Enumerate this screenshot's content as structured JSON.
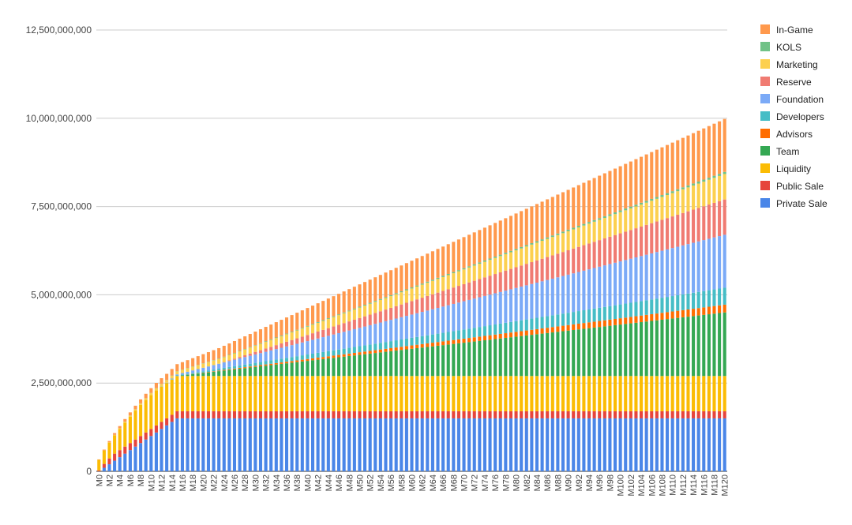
{
  "chart_data": {
    "type": "bar",
    "stacked": true,
    "title": "",
    "xlabel": "",
    "ylabel": "",
    "ylim": [
      0,
      12500000000
    ],
    "y_ticks": [
      0,
      2500000000,
      5000000000,
      7500000000,
      10000000000,
      12500000000
    ],
    "y_tick_labels": [
      "0",
      "2,500,000,000",
      "5,000,000,000",
      "7,500,000,000",
      "10,000,000,000",
      "12,500,000,000"
    ],
    "grid": true,
    "legend_position": "right",
    "x_range": {
      "prefix": "M",
      "start": 0,
      "end": 120
    },
    "x_tick_step": 2,
    "series": [
      {
        "name": "Private Sale",
        "color": "#4a86e8",
        "profile": {
          "type": "linear_ramp",
          "start": 1,
          "end": 15,
          "final": 1500000000
        }
      },
      {
        "name": "Public Sale",
        "color": "#e6453c",
        "profile": {
          "type": "sequence",
          "values": [
            25000000,
            110000000,
            165000000,
            200000000
          ],
          "hold": 200000000
        }
      },
      {
        "name": "Liquidity",
        "color": "#fbbc04",
        "profile": {
          "type": "sequence",
          "values": [
            300000000,
            380000000,
            450000000,
            520000000,
            600000000,
            680000000,
            750000000,
            820000000,
            880000000,
            920000000,
            960000000,
            990000000,
            1000000000
          ],
          "hold": 1000000000
        }
      },
      {
        "name": "Team",
        "color": "#34a853",
        "profile": {
          "type": "linear_ramp",
          "start": 16,
          "end": 120,
          "final": 1800000000
        }
      },
      {
        "name": "Advisors",
        "color": "#ff6d01",
        "profile": {
          "type": "linear_ramp",
          "start": 16,
          "end": 120,
          "final": 220000000
        }
      },
      {
        "name": "Developers",
        "color": "#46bdc6",
        "profile": {
          "type": "linear_ramp",
          "start": 12,
          "end": 120,
          "final": 480000000
        }
      },
      {
        "name": "Foundation",
        "color": "#7baaf7",
        "profile": {
          "type": "linear_ramp",
          "start": 14,
          "end": 120,
          "final": 1500000000
        }
      },
      {
        "name": "Reserve",
        "color": "#f07b72",
        "profile": {
          "type": "linear_ramp",
          "start": 24,
          "end": 120,
          "final": 1000000000
        }
      },
      {
        "name": "Marketing",
        "color": "#fcd04f",
        "profile": {
          "type": "linear_ramp",
          "start": 2,
          "end": 120,
          "final": 720000000
        }
      },
      {
        "name": "KOLS",
        "color": "#71c287",
        "profile": {
          "type": "linear_ramp",
          "start": 2,
          "end": 120,
          "final": 60000000
        }
      },
      {
        "name": "In-Game",
        "color": "#ff994d",
        "profile": {
          "type": "linear_ramp",
          "start": 0,
          "end": 120,
          "final": 1500000000
        }
      }
    ]
  }
}
